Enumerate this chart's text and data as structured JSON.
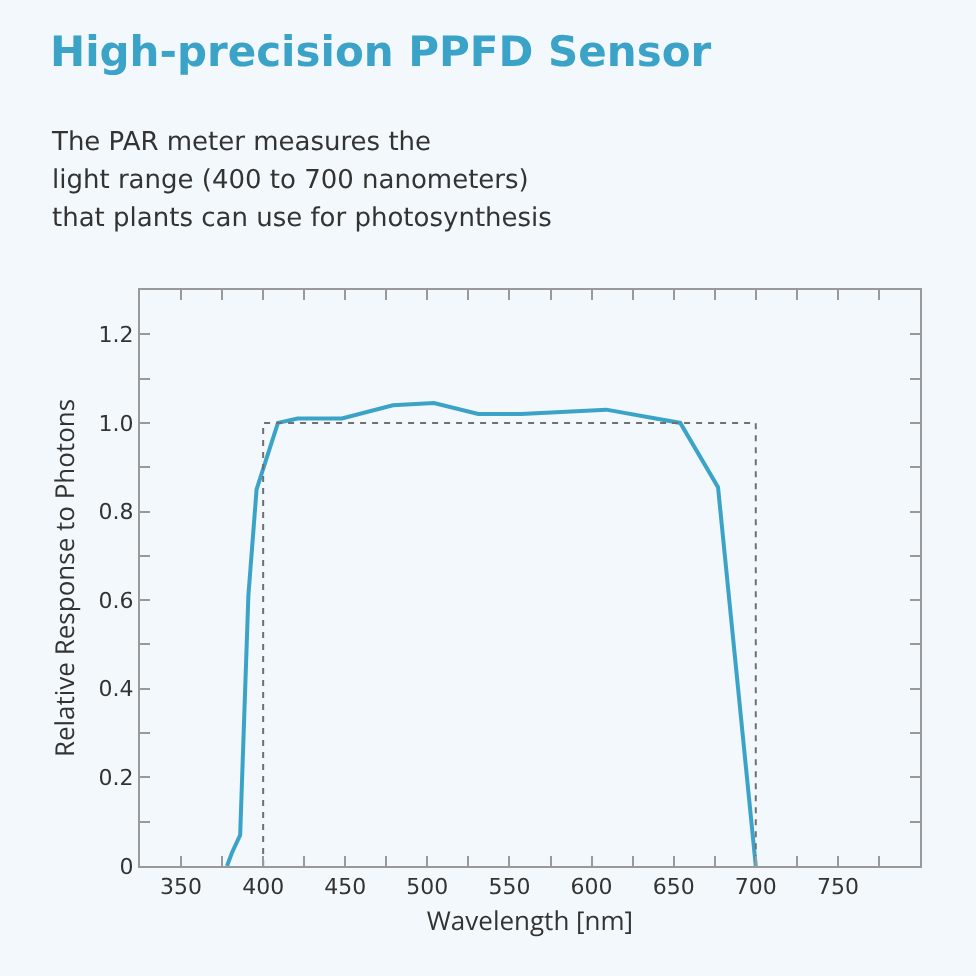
{
  "chart_data": {
    "type": "line",
    "title": "High-precision PPFD Sensor",
    "subtitle": "The PAR meter measures the\nlight range (400 to 700 nanometers)\nthat plants can use for photosynthesis",
    "xlabel": "Wavelength [nm]",
    "ylabel": "Relative Response to Photons",
    "xlim": [
      325,
      800
    ],
    "xticks": [
      {
        "value": 325,
        "label": null
      },
      350,
      {
        "value": 375,
        "label": null
      },
      400,
      {
        "value": 425,
        "label": null
      },
      450,
      {
        "value": 475,
        "label": null
      },
      500,
      {
        "value": 525,
        "label": null
      },
      550,
      {
        "value": 575,
        "label": null
      },
      600,
      {
        "value": 625,
        "label": null
      },
      650,
      {
        "value": 675,
        "label": null
      },
      700,
      {
        "value": 725,
        "label": null
      },
      750,
      {
        "value": 775,
        "label": null
      }
    ],
    "ylim": [
      0,
      1.3
    ],
    "yticks": [
      0,
      {
        "value": 0.1,
        "label": null
      },
      0.2,
      {
        "value": 0.3,
        "label": null
      },
      0.4,
      {
        "value": 0.5,
        "label": null
      },
      0.6,
      {
        "value": 0.7,
        "label": null
      },
      0.8,
      {
        "value": 0.9,
        "label": null
      },
      {
        "value": 1.0,
        "label": "1.0"
      },
      {
        "value": 1.1,
        "label": null
      },
      1.2
    ],
    "grid": false,
    "marker": "none",
    "series": [
      {
        "color": "#3ba3c7",
        "line_style": "solid",
        "x": [
          378,
          381,
          386,
          391,
          396,
          409,
          421,
          448,
          479,
          504,
          531,
          557,
          609,
          654,
          677,
          700
        ],
        "values": [
          0,
          0.03,
          0.07,
          0.61,
          0.85,
          1.0,
          1.01,
          1.01,
          1.04,
          1.045,
          1.02,
          1.02,
          1.03,
          1.0,
          0.855,
          0
        ]
      },
      {
        "color": "#707070",
        "line_style": "dotted",
        "x": [
          400,
          400,
          700,
          700
        ],
        "values": [
          0,
          1.0,
          1.0,
          0
        ]
      }
    ]
  }
}
